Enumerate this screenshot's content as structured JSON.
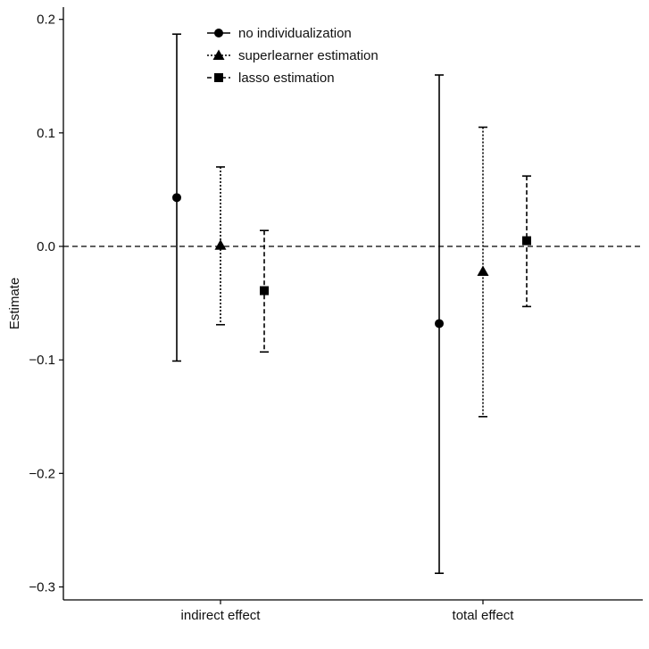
{
  "chart_data": {
    "type": "scatter",
    "title": "",
    "xlabel": "",
    "ylabel": "Estimate",
    "categories": [
      "indirect effect",
      "total effect"
    ],
    "ylim": [
      -0.31,
      0.21
    ],
    "yticks": [
      0.2,
      0.1,
      0.0,
      -0.1,
      -0.2,
      -0.3
    ],
    "ytick_labels": [
      "0.2",
      "0.1",
      "0.0",
      "−0.1",
      "−0.2",
      "−0.3"
    ],
    "reference_line": 0.0,
    "grid": false,
    "legend_position": "top-center",
    "series": [
      {
        "name": "no individualization",
        "marker": "circle",
        "line_style": "solid",
        "points": [
          {
            "category": "indirect effect",
            "estimate": 0.043,
            "lower": -0.101,
            "upper": 0.187
          },
          {
            "category": "total effect",
            "estimate": -0.068,
            "lower": -0.288,
            "upper": 0.151
          }
        ]
      },
      {
        "name": "superlearner estimation",
        "marker": "triangle",
        "line_style": "dotted",
        "points": [
          {
            "category": "indirect effect",
            "estimate": 0.001,
            "lower": -0.069,
            "upper": 0.07
          },
          {
            "category": "total effect",
            "estimate": -0.022,
            "lower": -0.15,
            "upper": 0.105
          }
        ]
      },
      {
        "name": "lasso estimation",
        "marker": "square",
        "line_style": "dashed",
        "points": [
          {
            "category": "indirect effect",
            "estimate": -0.039,
            "lower": -0.093,
            "upper": 0.014
          },
          {
            "category": "total effect",
            "estimate": 0.005,
            "lower": -0.053,
            "upper": 0.062
          }
        ]
      }
    ]
  }
}
